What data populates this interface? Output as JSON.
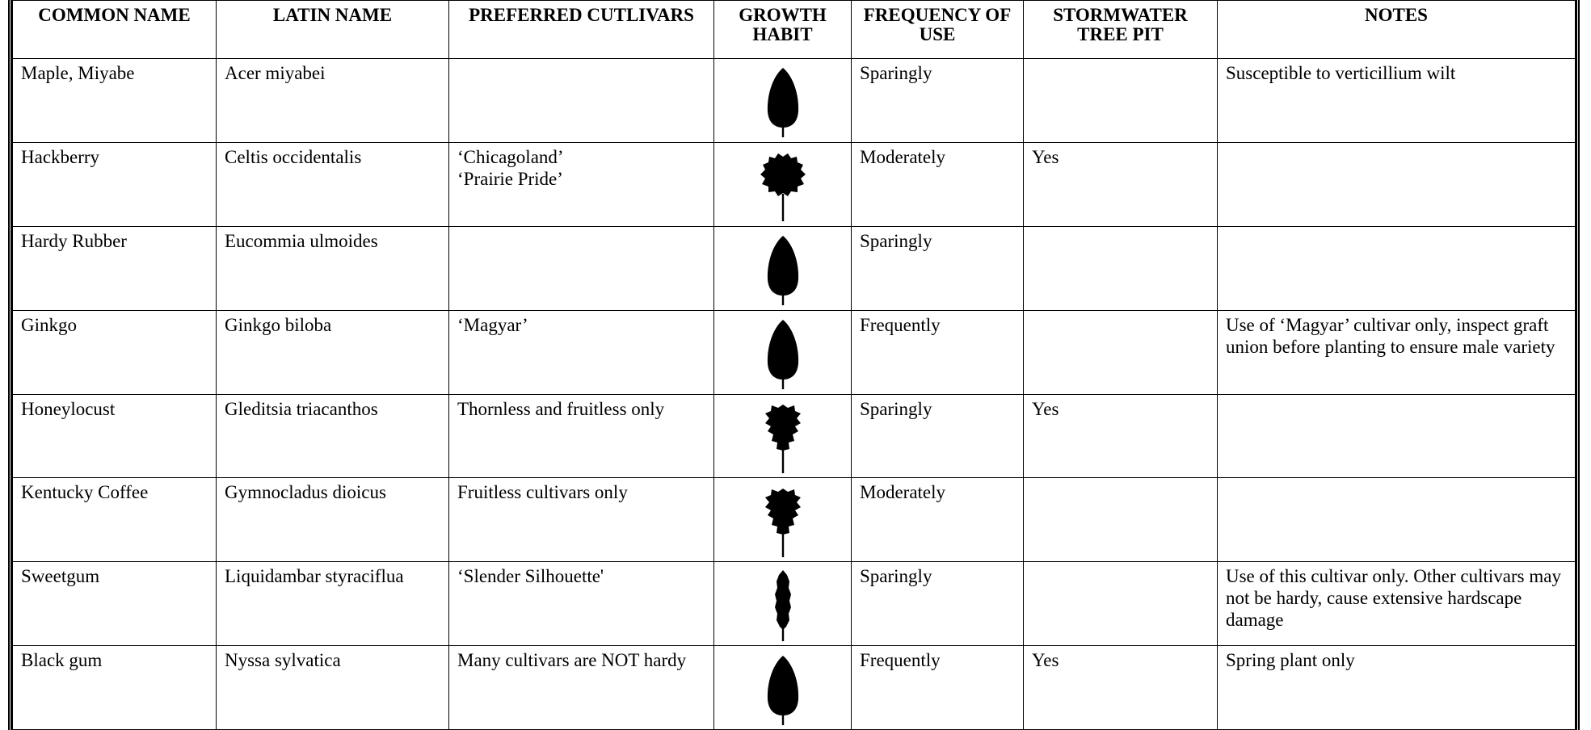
{
  "table": {
    "header": [
      "COMMON NAME",
      "LATIN NAME",
      "PREFERRED CUTLIVARS",
      "GROWTH HABIT",
      "FREQUENCY OF USE",
      "STORMWATER TREE PIT",
      "NOTES"
    ],
    "rows": [
      [
        "Maple, Miyabe",
        "Acer miyabei",
        null,
        null,
        "Sparingly",
        null,
        "Susceptible to verticillium wilt"
      ],
      [
        "Hackberry",
        "Celtis occidentalis",
        "‘Chicagoland’\n‘Prairie Pride’",
        null,
        "Moderately",
        "Yes",
        null
      ],
      [
        "Hardy Rubber",
        "Eucommia ulmoides",
        null,
        null,
        "Sparingly",
        null,
        null
      ],
      [
        "Ginkgo",
        "Ginkgo biloba",
        "‘Magyar’",
        null,
        "Frequently",
        null,
        "Use of ‘Magyar’ cultivar only, inspect graft union before planting to ensure male variety"
      ],
      [
        "Honeylocust",
        "Gleditsia triacanthos",
        "Thornless and fruitless only",
        null,
        "Sparingly",
        "Yes",
        null
      ],
      [
        "Kentucky Coffee",
        "Gymnocladus dioicus",
        "Fruitless cultivars only",
        null,
        "Moderately",
        null,
        null
      ],
      [
        "Sweetgum",
        "Liquidambar styraciflua",
        "‘Slender Silhouette'",
        null,
        "Sparingly",
        null,
        "Use of this cultivar only. Other cultivars may not be hardy, cause extensive hardscape damage"
      ],
      [
        "Black gum",
        "Nyssa sylvatica",
        "Many cultivars are NOT hardy",
        null,
        "Frequently",
        "Yes",
        "Spring plant only"
      ]
    ]
  }
}
